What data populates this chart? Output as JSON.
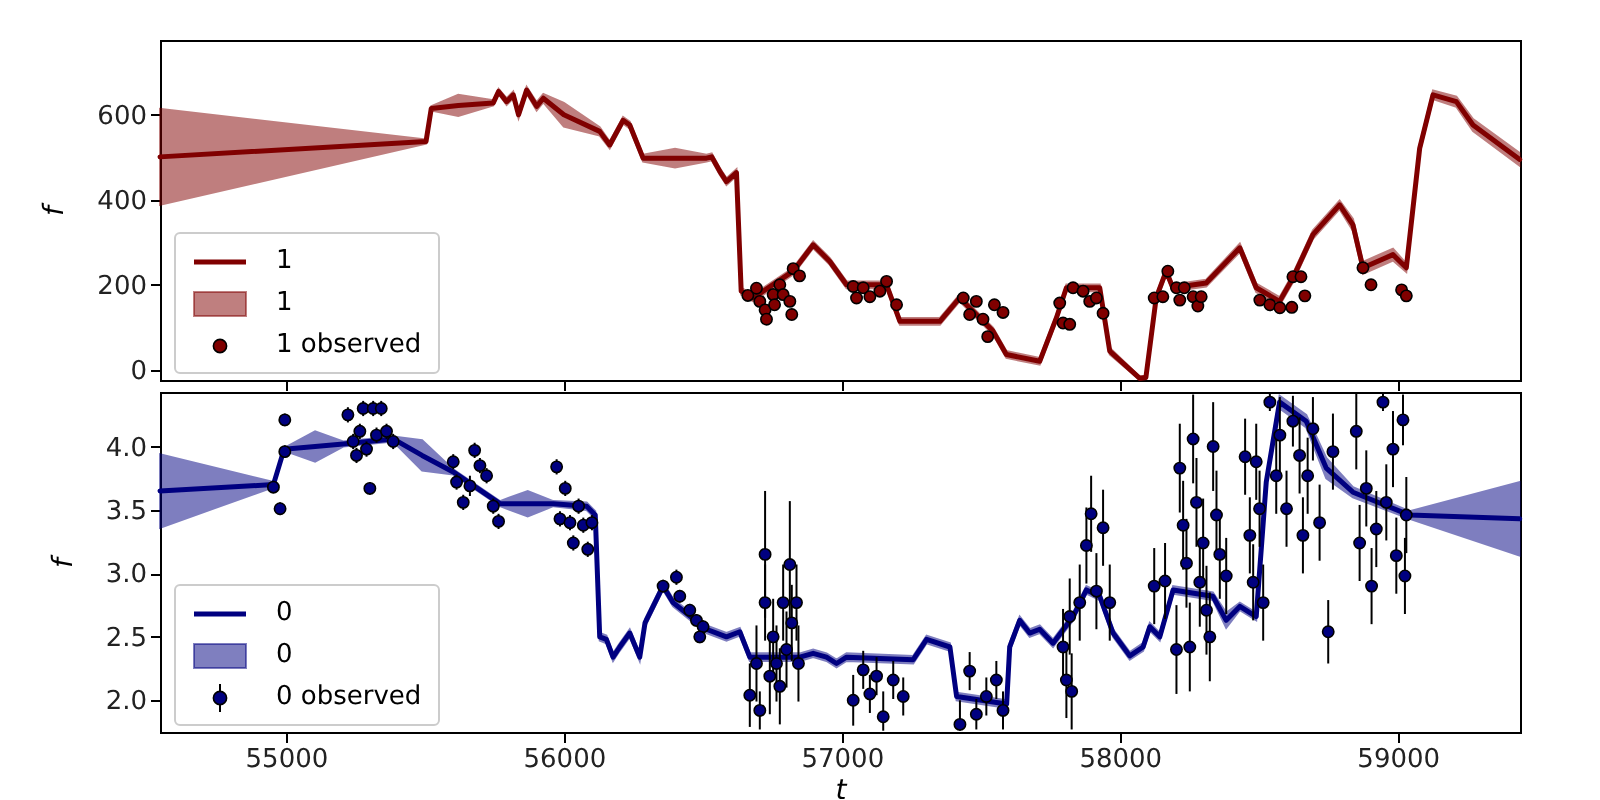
{
  "chart_data": [
    {
      "type": "line",
      "ylabel": "f",
      "xlim": [
        54547,
        59440
      ],
      "ylim": [
        -24,
        776
      ],
      "xticks": [
        55000,
        56000,
        57000,
        58000,
        59000
      ],
      "yticks": [
        0,
        200,
        400,
        600
      ],
      "tick_labels": "y",
      "grid": false,
      "legend": "bottom left",
      "line_style": "solid",
      "series": [
        {
          "name": "1",
          "color": "#800000",
          "x": [
            54547,
            55504,
            55523,
            55620,
            55746,
            55765,
            55794,
            55818,
            55837,
            55866,
            55902,
            55926,
            56000,
            56129,
            56165,
            56213,
            56237,
            56285,
            56400,
            56513,
            56532,
            56561,
            56585,
            56621,
            56638,
            56681,
            56825,
            56897,
            56957,
            57017,
            57161,
            57209,
            57353,
            57424,
            57544,
            57592,
            57712,
            57772,
            57808,
            57928,
            57964,
            58072,
            58094,
            58131,
            58167,
            58191,
            58311,
            58432,
            58491,
            58575,
            58623,
            58695,
            58791,
            58839,
            58875,
            58983,
            59031,
            59079,
            59127,
            59211,
            59271,
            59439
          ],
          "values": [
            501,
            537,
            615,
            622,
            628,
            655,
            631,
            647,
            600,
            658,
            620,
            639,
            600,
            561,
            529,
            587,
            576,
            498,
            498,
            498,
            501,
            467,
            443,
            464,
            185,
            169,
            232,
            294,
            255,
            200,
            200,
            114,
            114,
            169,
            91,
            36,
            20,
            122,
            193,
            193,
            44,
            -20,
            -18,
            169,
            232,
            193,
            204,
            287,
            193,
            161,
            216,
            318,
            388,
            341,
            240,
            271,
            240,
            521,
            647,
            631,
            576,
            495
          ],
          "lower": [
            388,
            532,
            610,
            597,
            622,
            649,
            623,
            639,
            592,
            650,
            610,
            629,
            572,
            551,
            521,
            579,
            568,
            490,
            476,
            490,
            493,
            459,
            435,
            456,
            177,
            161,
            224,
            286,
            247,
            192,
            192,
            106,
            106,
            161,
            83,
            28,
            12,
            114,
            185,
            185,
            36,
            -24,
            -22,
            161,
            224,
            185,
            196,
            277,
            183,
            151,
            206,
            308,
            378,
            327,
            226,
            257,
            230,
            511,
            637,
            619,
            562,
            480
          ],
          "upper": [
            614,
            542,
            620,
            647,
            634,
            661,
            639,
            655,
            608,
            666,
            630,
            649,
            628,
            571,
            537,
            595,
            584,
            506,
            520,
            506,
            509,
            475,
            451,
            472,
            193,
            177,
            240,
            302,
            263,
            208,
            208,
            122,
            122,
            177,
            99,
            44,
            28,
            130,
            201,
            201,
            52,
            -16,
            -14,
            177,
            240,
            201,
            212,
            297,
            203,
            171,
            226,
            328,
            398,
            355,
            254,
            285,
            250,
            531,
            657,
            643,
            590,
            510
          ]
        },
        {
          "name": "1 observed",
          "type": "scatter",
          "color": "#800000",
          "x": [
            56662,
            56693,
            56705,
            56724,
            56729,
            56753,
            56758,
            56777,
            56789,
            56813,
            56820,
            56825,
            56848,
            57041,
            57053,
            57077,
            57101,
            57137,
            57161,
            57197,
            57437,
            57460,
            57484,
            57508,
            57525,
            57549,
            57580,
            57784,
            57796,
            57820,
            57832,
            57868,
            57892,
            57916,
            57940,
            58124,
            58155,
            58173,
            58204,
            58216,
            58232,
            58264,
            58281,
            58293,
            58504,
            58540,
            58576,
            58619,
            58623,
            58652,
            58666,
            58875,
            58904,
            59014,
            59031
          ],
          "values": [
            175,
            192,
            161,
            141,
            119,
            177,
            153,
            200,
            177,
            161,
            130,
            238,
            221,
            196,
            169,
            193,
            172,
            185,
            208,
            153,
            169,
            130,
            161,
            119,
            78,
            153,
            135,
            157,
            110,
            107,
            193,
            185,
            161,
            169,
            133,
            169,
            172,
            232,
            193,
            164,
            193,
            172,
            150,
            172,
            164,
            153,
            146,
            147,
            219,
            219,
            174,
            240,
            200,
            188,
            174
          ]
        }
      ]
    },
    {
      "type": "line",
      "xlabel": "t",
      "ylabel": "f",
      "xlim": [
        54547,
        59440
      ],
      "ylim": [
        1.75,
        4.43
      ],
      "xticks": [
        55000,
        56000,
        57000,
        58000,
        59000
      ],
      "yticks": [
        {
          "value": 2,
          "label": "2.0"
        },
        2.5,
        {
          "value": 3,
          "label": "3.0"
        },
        3.5,
        {
          "value": 4,
          "label": "4.0"
        }
      ],
      "grid": false,
      "legend": "bottom left",
      "line_style": "solid",
      "series": [
        {
          "name": "0",
          "color": "#000080",
          "x": [
            54547,
            54955,
            54991,
            55003,
            55105,
            55206,
            55386,
            55490,
            55602,
            55770,
            55870,
            55962,
            56082,
            56113,
            56129,
            56153,
            56177,
            56201,
            56237,
            56273,
            56292,
            56357,
            56393,
            56513,
            56585,
            56633,
            56669,
            56849,
            56897,
            56945,
            56981,
            57017,
            57257,
            57305,
            57389,
            57413,
            57593,
            57604,
            57640,
            57676,
            57712,
            57760,
            57832,
            57880,
            57928,
            57976,
            58036,
            58084,
            58108,
            58144,
            58192,
            58335,
            58383,
            58432,
            58491,
            58527,
            58575,
            58671,
            58743,
            58839,
            59043,
            59439
          ],
          "values": [
            3.65,
            3.7,
            3.96,
            3.98,
            4.0,
            4.02,
            4.06,
            3.93,
            3.8,
            3.55,
            3.55,
            3.55,
            3.53,
            3.46,
            2.5,
            2.48,
            2.34,
            2.42,
            2.53,
            2.34,
            2.61,
            2.9,
            2.77,
            2.56,
            2.5,
            2.54,
            2.34,
            2.34,
            2.37,
            2.34,
            2.29,
            2.34,
            2.32,
            2.48,
            2.42,
            2.03,
            1.97,
            2.42,
            2.63,
            2.53,
            2.56,
            2.45,
            2.66,
            2.87,
            2.82,
            2.53,
            2.35,
            2.42,
            2.58,
            2.5,
            2.87,
            2.82,
            2.63,
            2.74,
            2.66,
            3.72,
            4.35,
            4.2,
            3.83,
            3.64,
            3.46,
            3.43
          ],
          "lower": [
            3.36,
            3.68,
            3.94,
            3.96,
            3.88,
            4.0,
            4.04,
            3.81,
            3.78,
            3.53,
            3.45,
            3.53,
            3.5,
            3.43,
            2.47,
            2.45,
            2.31,
            2.39,
            2.5,
            2.31,
            2.58,
            2.87,
            2.74,
            2.53,
            2.47,
            2.51,
            2.31,
            2.31,
            2.34,
            2.31,
            2.26,
            2.31,
            2.29,
            2.45,
            2.39,
            2.0,
            1.94,
            2.39,
            2.6,
            2.5,
            2.53,
            2.42,
            2.63,
            2.84,
            2.79,
            2.5,
            2.32,
            2.39,
            2.55,
            2.47,
            2.84,
            2.79,
            2.57,
            2.71,
            2.63,
            3.69,
            4.3,
            4.15,
            3.75,
            3.6,
            3.43,
            3.14
          ],
          "upper": [
            3.94,
            3.72,
            3.98,
            4.0,
            4.12,
            4.04,
            4.08,
            4.05,
            3.82,
            3.57,
            3.65,
            3.57,
            3.56,
            3.49,
            2.53,
            2.51,
            2.37,
            2.45,
            2.56,
            2.37,
            2.64,
            2.93,
            2.8,
            2.59,
            2.53,
            2.57,
            2.37,
            2.37,
            2.4,
            2.37,
            2.32,
            2.37,
            2.35,
            2.51,
            2.45,
            2.06,
            2.0,
            2.45,
            2.66,
            2.56,
            2.59,
            2.48,
            2.69,
            2.9,
            2.85,
            2.56,
            2.38,
            2.45,
            2.61,
            2.53,
            2.9,
            2.85,
            2.69,
            2.77,
            2.69,
            3.75,
            4.4,
            4.25,
            3.91,
            3.68,
            3.49,
            3.72
          ]
        },
        {
          "name": "0 observed",
          "type": "scatter",
          "color": "#000080",
          "x": [
            54955,
            54979,
            54996,
            54996,
            55223,
            55242,
            55254,
            55266,
            55278,
            55290,
            55302,
            55314,
            55326,
            55343,
            55362,
            55386,
            55602,
            55614,
            55638,
            55662,
            55679,
            55698,
            55722,
            55746,
            55765,
            55974,
            55986,
            56005,
            56022,
            56034,
            56053,
            56070,
            56086,
            56101,
            56357,
            56405,
            56417,
            56453,
            56477,
            56501,
            56489,
            56669,
            56693,
            56705,
            56724,
            56724,
            56741,
            56753,
            56765,
            56777,
            56789,
            56801,
            56813,
            56820,
            56837,
            56844,
            57041,
            57077,
            57101,
            57125,
            57149,
            57185,
            57221,
            57425,
            57460,
            57484,
            57520,
            57556,
            57580,
            57796,
            57808,
            57827,
            57820,
            57856,
            57880,
            57897,
            57916,
            57940,
            57964,
            58124,
            58163,
            58204,
            58216,
            58228,
            58240,
            58252,
            58264,
            58276,
            58288,
            58300,
            58312,
            58324,
            58336,
            58348,
            58360,
            58383,
            58451,
            58468,
            58480,
            58491,
            58503,
            58516,
            58540,
            58563,
            58576,
            58600,
            58623,
            58647,
            58659,
            58676,
            58695,
            58719,
            58750,
            58767,
            58851,
            58863,
            58887,
            58906,
            58923,
            58947,
            58959,
            58983,
            58995,
            59019,
            59026,
            59031
          ],
          "values": [
            3.68,
            3.51,
            4.21,
            3.96,
            4.25,
            4.04,
            3.93,
            4.12,
            4.3,
            3.98,
            3.67,
            4.3,
            4.09,
            4.3,
            4.12,
            4.04,
            3.88,
            3.72,
            3.56,
            3.69,
            3.97,
            3.85,
            3.77,
            3.53,
            3.41,
            3.84,
            3.43,
            3.67,
            3.4,
            3.24,
            3.53,
            3.38,
            3.19,
            3.4,
            2.9,
            2.97,
            2.82,
            2.71,
            2.63,
            2.58,
            2.5,
            2.04,
            2.29,
            1.92,
            3.15,
            2.77,
            2.19,
            2.5,
            2.29,
            2.11,
            2.77,
            2.4,
            3.07,
            2.61,
            2.77,
            2.29,
            2.0,
            2.24,
            2.05,
            2.19,
            1.87,
            2.16,
            2.03,
            1.81,
            2.23,
            1.89,
            2.03,
            2.16,
            1.92,
            2.42,
            2.16,
            2.07,
            2.66,
            2.77,
            3.22,
            3.47,
            2.86,
            3.36,
            2.77,
            2.9,
            2.94,
            2.4,
            3.83,
            3.38,
            3.08,
            2.42,
            4.06,
            3.56,
            2.93,
            3.24,
            2.71,
            2.5,
            4.0,
            3.46,
            3.15,
            2.98,
            3.92,
            3.3,
            2.93,
            3.88,
            3.51,
            2.77,
            4.35,
            3.77,
            4.09,
            3.51,
            4.2,
            3.93,
            3.3,
            3.77,
            4.14,
            3.4,
            2.54,
            3.96,
            4.12,
            3.24,
            3.67,
            2.9,
            3.35,
            4.35,
            3.56,
            3.98,
            3.14,
            4.21,
            2.98,
            3.46
          ],
          "errors": [
            0.05,
            0.05,
            0.05,
            0.05,
            0.06,
            0.06,
            0.06,
            0.06,
            0.06,
            0.06,
            0.05,
            0.06,
            0.06,
            0.06,
            0.06,
            0.06,
            0.06,
            0.06,
            0.06,
            0.08,
            0.06,
            0.06,
            0.06,
            0.06,
            0.06,
            0.06,
            0.06,
            0.06,
            0.06,
            0.06,
            0.06,
            0.06,
            0.06,
            0.06,
            0.05,
            0.06,
            0.05,
            0.05,
            0.05,
            0.05,
            0.05,
            0.25,
            0.3,
            0.15,
            0.5,
            0.3,
            0.3,
            0.3,
            0.3,
            0.3,
            0.3,
            0.3,
            0.5,
            0.3,
            0.3,
            0.3,
            0.2,
            0.15,
            0.15,
            0.15,
            [
              1.76,
              2.07
            ],
            0.15,
            0.15,
            [
              1.76,
              2.0
            ],
            0.15,
            0.12,
            0.15,
            0.15,
            0.15,
            0.3,
            0.3,
            0.3,
            0.3,
            0.3,
            0.3,
            0.3,
            0.3,
            0.3,
            0.3,
            0.3,
            0.3,
            0.35,
            0.35,
            0.35,
            0.35,
            0.35,
            0.35,
            0.35,
            0.35,
            0.35,
            0.35,
            0.35,
            0.35,
            0.35,
            0.35,
            0.3,
            0.3,
            0.3,
            0.3,
            0.3,
            0.3,
            0.3,
            0.07,
            0.3,
            0.3,
            0.3,
            0.2,
            0.3,
            0.3,
            0.3,
            0.25,
            0.3,
            0.25,
            0.3,
            0.3,
            0.3,
            0.3,
            0.3,
            0.3,
            0.07,
            0.3,
            0.3,
            0.3,
            0.2,
            0.3,
            0.3
          ]
        }
      ]
    }
  ]
}
